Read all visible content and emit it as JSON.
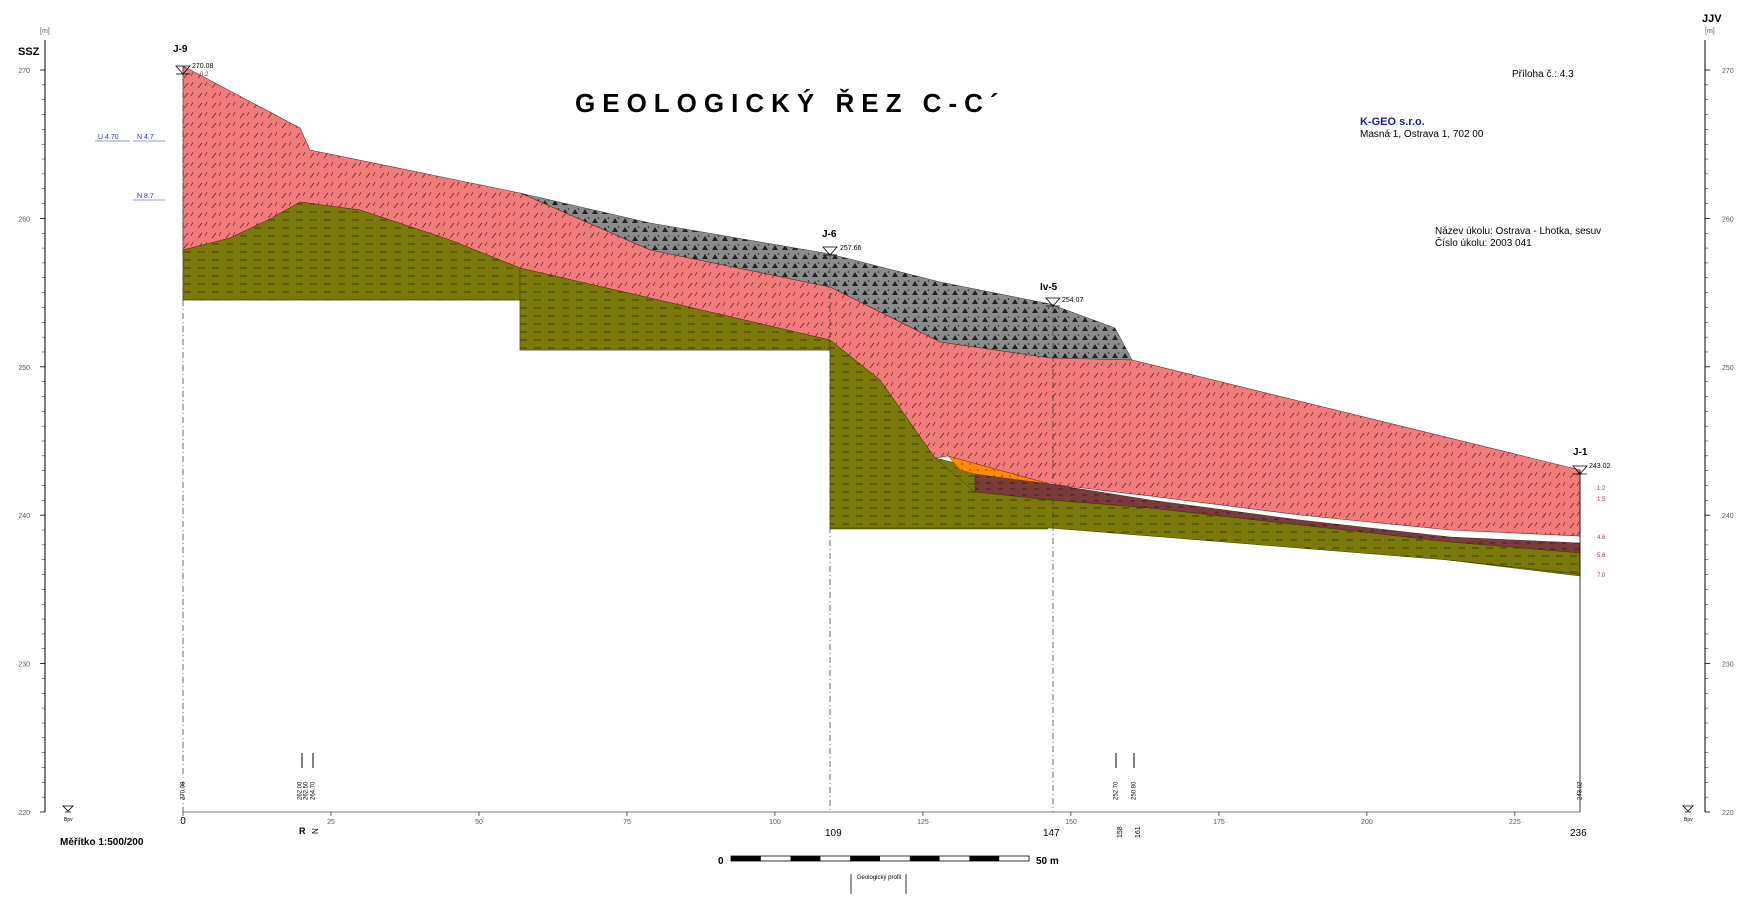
{
  "title": "GEOLOGICKÝ ŘEZ C-C´",
  "direction_left": "SSZ",
  "direction_right": "JJV",
  "axis_unit": "[m]",
  "attachment": "Příloha č.: 4.3",
  "company_name": "K-GEO s.r.o.",
  "company_address": "Masná 1, Ostrava 1, 702 00",
  "task_name": "Název úkolu: Ostrava - Lhotka, sesuv",
  "task_number": "Číslo úkolu: 2003 041",
  "scale_text": "Měřítko  1:500/200",
  "scalebar_start": "0",
  "scalebar_end": "50 m",
  "profile_box_label": "Geologický profil",
  "datum_label": "Bpv",
  "elevation_axis": {
    "ticks": [
      270,
      260,
      250,
      240,
      230,
      220
    ],
    "range": [
      220,
      272
    ]
  },
  "distance_axis": {
    "ticks": [
      "0",
      "25",
      "50",
      "75",
      "100",
      "125",
      "150",
      "175",
      "200",
      "225"
    ],
    "tick_values": [
      0,
      25,
      50,
      75,
      100,
      125,
      150,
      175,
      200,
      225
    ],
    "range": [
      0,
      236
    ],
    "highlight_labels": [
      "109",
      "147",
      "236"
    ],
    "minor_labels": [
      "158",
      "161"
    ]
  },
  "boreholes": [
    {
      "name": "J-9",
      "elevation_label": "270.08",
      "depth_note": "0.2"
    },
    {
      "name": "J-6",
      "elevation_label": "257.66"
    },
    {
      "name": "Iv-5",
      "elevation_label": "254.07"
    },
    {
      "name": "J-1",
      "elevation_label": "243.02"
    }
  ],
  "j1_depths": [
    "1.2",
    "1.5",
    "4.6",
    "5.6",
    "7.0"
  ],
  "side_water_marks": [
    "U 4.70",
    "N 4.7",
    "N 8.7"
  ],
  "bottom_point_labels": [
    "270.08",
    "262.00",
    "262.50",
    "264.70",
    "252.70",
    "250.80",
    "243.02"
  ],
  "bottom_point_x_labels": [
    "R",
    "N"
  ],
  "colors": {
    "pink_layer": "#f27c7c",
    "olive_layer": "#7b7a09",
    "orange_layer": "#ff8a00",
    "brown_layer": "#7a3b3b",
    "gray_layer": "#8c8c8c",
    "company": "#1a1aa6",
    "water": "#3030c0"
  }
}
